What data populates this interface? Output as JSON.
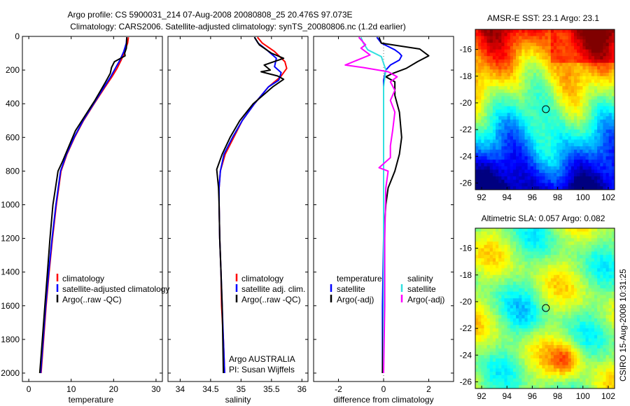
{
  "header": {
    "line1": "Argo profile: CS 5900031_214 07-Aug-2008 20080808_25 20.476S 97.073E",
    "line2": "Climatology: CARS2006. Satellite-adjusted climatology: synTS_20080806.nc (1.2d earlier)"
  },
  "side_stamp": "CSIRO 15-Aug-2008 10:31:25",
  "colors": {
    "red": "#ff0000",
    "blue": "#0000ff",
    "black": "#000000",
    "cyan": "#33e0e0",
    "magenta": "#ff00ff"
  },
  "chart_data": [
    {
      "type": "line",
      "xlabel": "temperature",
      "ylabel": "",
      "xlim": [
        -1.5,
        31.5
      ],
      "ylim": [
        2050,
        0
      ],
      "xticks": [
        0,
        10,
        20,
        30
      ],
      "yticks": [
        0,
        200,
        400,
        600,
        800,
        1000,
        1200,
        1400,
        1600,
        1800,
        2000
      ],
      "legend": {
        "placement": "lower-right",
        "entries": [
          "climatology",
          "satellite-adjusted climatology",
          "Argo(..raw -QC)"
        ]
      },
      "series": [
        {
          "name": "climatology",
          "color": "red",
          "points": [
            [
              23.5,
              5
            ],
            [
              23.3,
              40
            ],
            [
              22.6,
              90
            ],
            [
              21.8,
              140
            ],
            [
              20.8,
              190
            ],
            [
              19.6,
              240
            ],
            [
              18.0,
              300
            ],
            [
              15.4,
              400
            ],
            [
              12.9,
              500
            ],
            [
              10.8,
              600
            ],
            [
              9.0,
              700
            ],
            [
              7.6,
              800
            ],
            [
              6.5,
              1000
            ],
            [
              5.6,
              1200
            ],
            [
              4.8,
              1400
            ],
            [
              4.1,
              1600
            ],
            [
              3.5,
              1800
            ],
            [
              2.9,
              2000
            ]
          ]
        },
        {
          "name": "satellite-adjusted climatology",
          "color": "blue",
          "points": [
            [
              23.1,
              5
            ],
            [
              23.0,
              40
            ],
            [
              22.4,
              90
            ],
            [
              21.5,
              140
            ],
            [
              20.4,
              190
            ],
            [
              19.3,
              240
            ],
            [
              17.8,
              300
            ],
            [
              15.3,
              400
            ],
            [
              12.8,
              500
            ],
            [
              10.7,
              600
            ],
            [
              8.9,
              700
            ],
            [
              7.5,
              800
            ],
            [
              6.4,
              1000
            ],
            [
              5.5,
              1200
            ],
            [
              4.7,
              1400
            ],
            [
              4.0,
              1600
            ],
            [
              3.4,
              1800
            ],
            [
              2.8,
              2000
            ]
          ]
        },
        {
          "name": "Argo(..raw -QC)",
          "color": "black",
          "points": [
            [
              23.1,
              5
            ],
            [
              23.0,
              70
            ],
            [
              22.6,
              100
            ],
            [
              22.7,
              115
            ],
            [
              20.2,
              150
            ],
            [
              19.5,
              185
            ],
            [
              19.2,
              220
            ],
            [
              17.9,
              280
            ],
            [
              15.6,
              380
            ],
            [
              13.3,
              470
            ],
            [
              11.0,
              560
            ],
            [
              9.5,
              650
            ],
            [
              8.0,
              740
            ],
            [
              6.9,
              800
            ],
            [
              6.3,
              900
            ],
            [
              5.7,
              1000
            ],
            [
              5.0,
              1200
            ],
            [
              4.4,
              1400
            ],
            [
              3.8,
              1600
            ],
            [
              3.2,
              1800
            ],
            [
              2.6,
              2000
            ]
          ]
        }
      ]
    },
    {
      "type": "line",
      "xlabel": "salinity",
      "ylabel": "",
      "xlim": [
        33.8,
        36.1
      ],
      "ylim": [
        2050,
        0
      ],
      "xticks": [
        34,
        34.5,
        35,
        35.5,
        36
      ],
      "yticks": [
        0,
        200,
        400,
        600,
        800,
        1000,
        1200,
        1400,
        1600,
        1800,
        2000
      ],
      "legend": {
        "placement": "lower-right",
        "entries": [
          "climatology",
          "satellite adj. clim.",
          "Argo(..raw -QC)"
        ]
      },
      "series": [
        {
          "name": "climatology",
          "color": "red",
          "points": [
            [
              35.27,
              5
            ],
            [
              35.35,
              40
            ],
            [
              35.55,
              90
            ],
            [
              35.72,
              150
            ],
            [
              35.75,
              190
            ],
            [
              35.65,
              240
            ],
            [
              35.45,
              300
            ],
            [
              35.22,
              400
            ],
            [
              35.02,
              500
            ],
            [
              34.88,
              600
            ],
            [
              34.74,
              700
            ],
            [
              34.66,
              800
            ],
            [
              34.64,
              900
            ],
            [
              34.64,
              1000
            ],
            [
              34.65,
              1200
            ],
            [
              34.67,
              1400
            ],
            [
              34.68,
              1600
            ],
            [
              34.71,
              1800
            ],
            [
              34.73,
              2000
            ]
          ]
        },
        {
          "name": "satellite adj. clim.",
          "color": "blue",
          "points": [
            [
              35.22,
              5
            ],
            [
              35.28,
              40
            ],
            [
              35.42,
              80
            ],
            [
              35.58,
              130
            ],
            [
              35.55,
              180
            ],
            [
              35.66,
              215
            ],
            [
              35.62,
              260
            ],
            [
              35.45,
              300
            ],
            [
              35.22,
              400
            ],
            [
              35.02,
              500
            ],
            [
              34.86,
              600
            ],
            [
              34.72,
              700
            ],
            [
              34.66,
              800
            ],
            [
              34.64,
              900
            ],
            [
              34.64,
              1000
            ],
            [
              34.65,
              1200
            ],
            [
              34.67,
              1400
            ],
            [
              34.69,
              1600
            ],
            [
              34.71,
              1800
            ],
            [
              34.73,
              2000
            ]
          ]
        },
        {
          "name": "Argo(..raw -QC)",
          "color": "black",
          "points": [
            [
              35.22,
              5
            ],
            [
              35.3,
              50
            ],
            [
              35.5,
              100
            ],
            [
              35.7,
              130
            ],
            [
              35.38,
              170
            ],
            [
              35.48,
              200
            ],
            [
              35.33,
              210
            ],
            [
              35.6,
              235
            ],
            [
              35.7,
              255
            ],
            [
              35.52,
              300
            ],
            [
              35.2,
              400
            ],
            [
              34.98,
              500
            ],
            [
              34.82,
              600
            ],
            [
              34.69,
              700
            ],
            [
              34.6,
              790
            ],
            [
              34.63,
              900
            ],
            [
              34.64,
              1000
            ],
            [
              34.65,
              1200
            ],
            [
              34.67,
              1400
            ],
            [
              34.69,
              1600
            ],
            [
              34.7,
              1800
            ],
            [
              34.71,
              2000
            ]
          ]
        }
      ],
      "annotation": [
        "Argo AUSTRALIA",
        "PI: Susan Wijffels"
      ]
    },
    {
      "type": "line",
      "xlabel": "difference from climatology",
      "ylabel": "",
      "xlim": [
        -3.1,
        3.1
      ],
      "ylim": [
        2050,
        0
      ],
      "xticks": [
        -2,
        0,
        2
      ],
      "yticks": [
        0,
        200,
        400,
        600,
        800,
        1000,
        1200,
        1400,
        1600,
        1800,
        2000
      ],
      "legend": {
        "placement": "lower-center",
        "columns": [
          {
            "header": "temperature",
            "entries": [
              "satellite",
              "Argo(-adj)"
            ]
          },
          {
            "header": "salinity",
            "entries": [
              "satellite",
              "Argo(-adj)"
            ]
          }
        ]
      },
      "series": [
        {
          "name": "satellite",
          "group": "temperature",
          "color": "blue",
          "points": [
            [
              -0.3,
              5
            ],
            [
              -0.1,
              40
            ],
            [
              0.2,
              60
            ],
            [
              0.5,
              80
            ],
            [
              0.7,
              100
            ],
            [
              0.8,
              115
            ],
            [
              0.7,
              140
            ],
            [
              0.3,
              170
            ],
            [
              0.1,
              200
            ],
            [
              0.0,
              260
            ],
            [
              0.0,
              400
            ],
            [
              0.0,
              800
            ],
            [
              0.0,
              1200
            ],
            [
              -0.05,
              1600
            ],
            [
              -0.05,
              2000
            ]
          ]
        },
        {
          "name": "Argo(-adj)",
          "group": "temperature",
          "color": "black",
          "points": [
            [
              -0.2,
              5
            ],
            [
              -0.1,
              40
            ],
            [
              1.6,
              75
            ],
            [
              2.0,
              115
            ],
            [
              1.5,
              150
            ],
            [
              1.0,
              190
            ],
            [
              0.4,
              220
            ],
            [
              0.1,
              240
            ],
            [
              0.5,
              270
            ],
            [
              0.5,
              350
            ],
            [
              0.7,
              450
            ],
            [
              0.8,
              600
            ],
            [
              0.7,
              700
            ],
            [
              0.5,
              800
            ],
            [
              0.2,
              900
            ],
            [
              0.1,
              1000
            ],
            [
              0.0,
              1200
            ],
            [
              0.0,
              1600
            ],
            [
              -0.05,
              2000
            ]
          ]
        },
        {
          "name": "satellite",
          "group": "salinity",
          "color": "cyan",
          "points": [
            [
              -1.0,
              5
            ],
            [
              -0.9,
              40
            ],
            [
              -0.7,
              80
            ],
            [
              -0.1,
              120
            ],
            [
              0.0,
              160
            ],
            [
              0.1,
              200
            ],
            [
              0.0,
              300
            ],
            [
              0.0,
              500
            ],
            [
              0.0,
              700
            ],
            [
              0.0,
              1000
            ],
            [
              0.0,
              1400
            ],
            [
              0.0,
              2000
            ]
          ]
        },
        {
          "name": "Argo(-adj)",
          "group": "salinity",
          "color": "magenta",
          "points": [
            [
              -1.1,
              5
            ],
            [
              -0.8,
              50
            ],
            [
              -1.0,
              70
            ],
            [
              -0.6,
              110
            ],
            [
              -1.7,
              170
            ],
            [
              -0.9,
              185
            ],
            [
              0.2,
              210
            ],
            [
              0.6,
              240
            ],
            [
              0.3,
              270
            ],
            [
              0.5,
              320
            ],
            [
              0.3,
              380
            ],
            [
              0.5,
              450
            ],
            [
              0.4,
              560
            ],
            [
              0.3,
              650
            ],
            [
              0.3,
              720
            ],
            [
              -0.2,
              780
            ],
            [
              0.2,
              800
            ],
            [
              0.1,
              900
            ],
            [
              0.05,
              1200
            ],
            [
              0.05,
              1600
            ],
            [
              0.0,
              2000
            ]
          ]
        }
      ]
    },
    {
      "type": "heatmap",
      "title": "AMSR-E SST: 23.1 Argo: 23.1",
      "xlim": [
        91.5,
        102.5
      ],
      "ylim": [
        -26.5,
        -14.5
      ],
      "xticks": [
        92,
        94,
        96,
        98,
        100,
        102
      ],
      "yticks": [
        -16,
        -18,
        -20,
        -22,
        -24,
        -26
      ],
      "marker": {
        "lon": 97.073,
        "lat": -20.476
      },
      "colormap": "jet",
      "pattern": "warm (yellow-orange) in the north, green through the middle, cyan and deep blue in the south"
    },
    {
      "type": "heatmap",
      "title": "Altimetric SLA: 0.057 Argo: 0.082",
      "xlim": [
        91.5,
        102.5
      ],
      "ylim": [
        -26.5,
        -14.5
      ],
      "xticks": [
        92,
        94,
        96,
        98,
        100,
        102
      ],
      "yticks": [
        -16,
        -18,
        -20,
        -22,
        -24,
        -26
      ],
      "marker": {
        "lon": 97.073,
        "lat": -20.476
      },
      "colormap": "jet",
      "pattern": "mostly green with yellow patches, an orange patch near 98E 24S"
    }
  ]
}
